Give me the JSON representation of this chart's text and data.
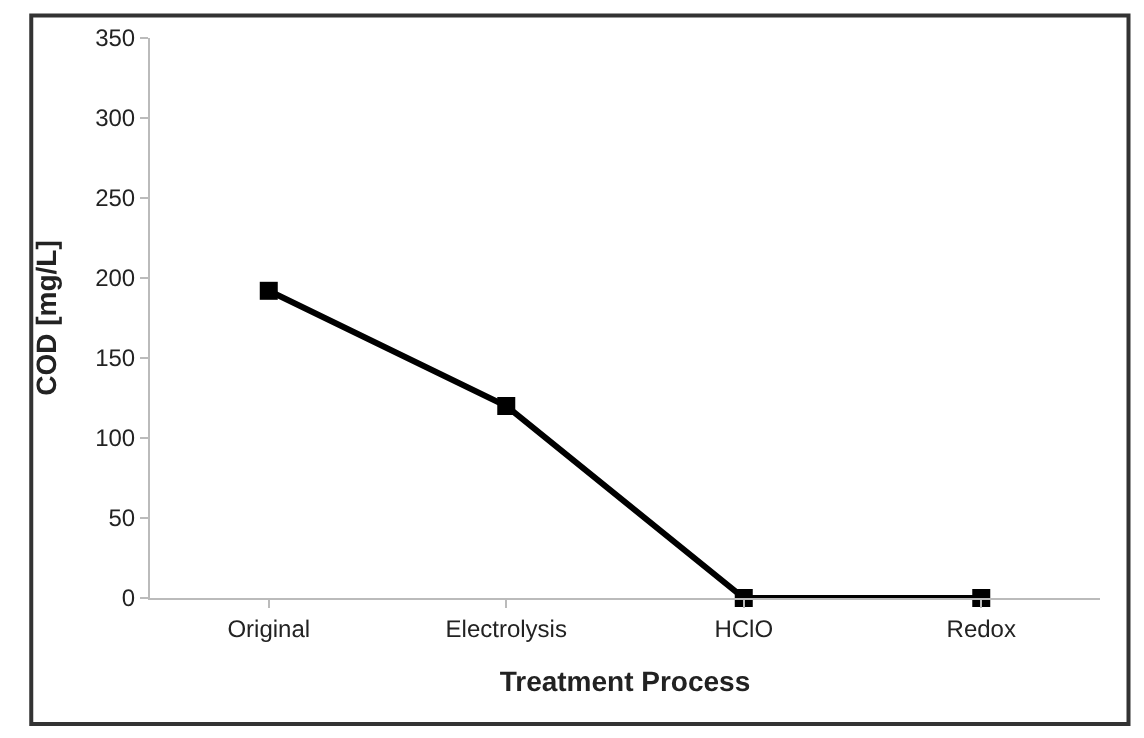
{
  "chart_data": {
    "type": "line",
    "xlabel": "Treatment Process",
    "ylabel": "COD [mg/L]",
    "categories": [
      "Original",
      "Electrolysis",
      "HClO",
      "Redox"
    ],
    "series": [
      {
        "color": "#000000",
        "values": [
          192,
          120,
          0,
          0
        ]
      }
    ],
    "ylim": [
      0,
      350
    ],
    "yticks": [
      0,
      50,
      100,
      150,
      200,
      250,
      300,
      350
    ],
    "marker": "square",
    "line_style": "solid"
  }
}
